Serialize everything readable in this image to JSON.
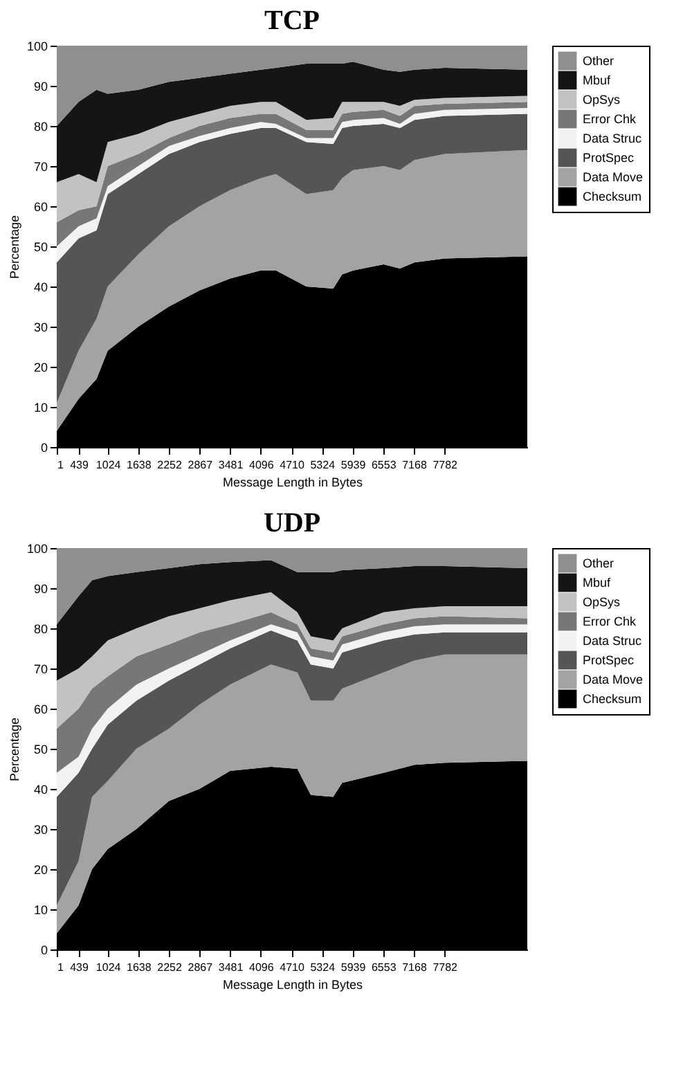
{
  "chart_data": [
    {
      "type": "area",
      "title": "TCP",
      "xlabel": "Message Length in Bytes",
      "ylabel": "Percentage",
      "stacked": true,
      "legend": "top right",
      "grid": false,
      "x": [
        1,
        439,
        800,
        1024,
        1638,
        2252,
        2867,
        3481,
        4096,
        4400,
        5011,
        5550,
        5730,
        5952,
        6561,
        6890,
        7180,
        7789,
        9446
      ],
      "xlim": [
        1,
        9446
      ],
      "xticks": [
        1,
        439,
        1024,
        1638,
        2252,
        2867,
        3481,
        4096,
        4710,
        5324,
        5939,
        6553,
        7168,
        7782
      ],
      "ylim": [
        0,
        100
      ],
      "yticks": [
        0,
        10,
        20,
        30,
        40,
        50,
        60,
        70,
        80,
        90,
        100
      ],
      "series": [
        {
          "name": "Checksum",
          "color": "#000000",
          "values": [
            4,
            12,
            17,
            24,
            30,
            35,
            39,
            42,
            44,
            44,
            40,
            39.5,
            43,
            44,
            45.5,
            44.5,
            46,
            47,
            47.5
          ]
        },
        {
          "name": "Data Move",
          "color": "#a3a3a3",
          "values": [
            7,
            12,
            15,
            16,
            18,
            20,
            21,
            22,
            23,
            24,
            23,
            24.5,
            24,
            25,
            24.5,
            24.5,
            25.5,
            26,
            26.5
          ]
        },
        {
          "name": "ProtSpec",
          "color": "#555555",
          "values": [
            35,
            28,
            22,
            23,
            20,
            18,
            16,
            14,
            12.5,
            11.5,
            13,
            11.5,
            12.5,
            11,
            10.5,
            10.5,
            10,
            9.5,
            9
          ]
        },
        {
          "name": "Data Struc",
          "color": "#f2f2f2",
          "values": [
            4,
            3,
            3,
            2,
            2,
            2,
            1.5,
            1.5,
            1.5,
            1,
            1,
            1.5,
            1.5,
            1.5,
            1.5,
            1,
            1.5,
            1.5,
            1.5
          ]
        },
        {
          "name": "Error Chk",
          "color": "#777777",
          "values": [
            6,
            4,
            3,
            5,
            3,
            2,
            2.5,
            2.5,
            2,
            2.5,
            2,
            2,
            2,
            2,
            2,
            2,
            2,
            1.5,
            1.5
          ]
        },
        {
          "name": "OpSys",
          "color": "#c2c2c2",
          "values": [
            10,
            9,
            6,
            6,
            5,
            4,
            3,
            3,
            3,
            3,
            2.5,
            3,
            3,
            2.5,
            2,
            2.5,
            1.5,
            1.5,
            1.5
          ]
        },
        {
          "name": "Mbuf",
          "color": "#151515",
          "values": [
            14,
            18,
            23,
            12,
            11,
            10,
            9,
            8,
            8,
            8.5,
            14,
            13.5,
            9.5,
            10,
            8,
            8.5,
            7.5,
            7.5,
            6.5
          ]
        },
        {
          "name": "Other",
          "color": "#8f8f8f",
          "values": [
            20,
            14,
            11,
            12,
            11,
            9,
            8,
            7,
            6,
            5.5,
            4.5,
            4.5,
            4.5,
            4,
            6,
            6.5,
            6,
            5.5,
            6
          ]
        }
      ]
    },
    {
      "type": "area",
      "title": "UDP",
      "xlabel": "Message Length in Bytes",
      "ylabel": "Percentage",
      "stacked": true,
      "legend": "top right",
      "grid": false,
      "x": [
        1,
        439,
        710,
        1024,
        1600,
        2252,
        2867,
        3481,
        4300,
        4830,
        5100,
        5550,
        5730,
        6561,
        7180,
        7789,
        9446
      ],
      "xlim": [
        1,
        9446
      ],
      "xticks": [
        1,
        439,
        1024,
        1638,
        2252,
        2867,
        3481,
        4096,
        4710,
        5324,
        5939,
        6553,
        7168,
        7782
      ],
      "ylim": [
        0,
        100
      ],
      "yticks": [
        0,
        10,
        20,
        30,
        40,
        50,
        60,
        70,
        80,
        90,
        100
      ],
      "series": [
        {
          "name": "Checksum",
          "color": "#000000",
          "values": [
            4,
            11,
            20,
            25,
            30,
            37,
            40,
            44.5,
            45.5,
            45,
            38.5,
            38,
            41.5,
            44,
            46,
            46.5,
            47
          ]
        },
        {
          "name": "Data Move",
          "color": "#a3a3a3",
          "values": [
            7,
            11,
            18,
            17,
            20,
            18,
            21,
            21.5,
            25.5,
            24,
            23.5,
            24,
            23.5,
            25,
            26,
            27,
            26.5
          ]
        },
        {
          "name": "ProtSpec",
          "color": "#555555",
          "values": [
            27,
            22,
            12,
            14,
            12,
            12,
            10,
            9,
            8.5,
            8,
            9,
            8,
            9,
            8,
            6.5,
            5.5,
            5.5
          ]
        },
        {
          "name": "Data Struc",
          "color": "#f2f2f2",
          "values": [
            6,
            4,
            5,
            4,
            4,
            3,
            2.5,
            2,
            1.5,
            2,
            2,
            2,
            2,
            2,
            2,
            2,
            2
          ]
        },
        {
          "name": "Error Chk",
          "color": "#777777",
          "values": [
            11,
            12,
            10,
            8,
            7,
            6,
            5.5,
            4,
            3,
            2,
            2,
            2,
            2,
            2,
            2,
            2,
            1.5
          ]
        },
        {
          "name": "OpSys",
          "color": "#c2c2c2",
          "values": [
            12,
            10,
            8,
            9,
            7,
            7,
            6,
            6,
            5,
            3,
            3,
            3,
            2,
            3,
            2.5,
            2.5,
            3
          ]
        },
        {
          "name": "Mbuf",
          "color": "#151515",
          "values": [
            14,
            18,
            19,
            16,
            14,
            12,
            11,
            9.5,
            8,
            10,
            16,
            17,
            14.5,
            11,
            10.5,
            10,
            9.5
          ]
        },
        {
          "name": "Other",
          "color": "#8f8f8f",
          "values": [
            19,
            12,
            8,
            7,
            6,
            5,
            4,
            3.5,
            3,
            6,
            6,
            6,
            5.5,
            5,
            4.5,
            4.5,
            5
          ]
        }
      ]
    }
  ]
}
